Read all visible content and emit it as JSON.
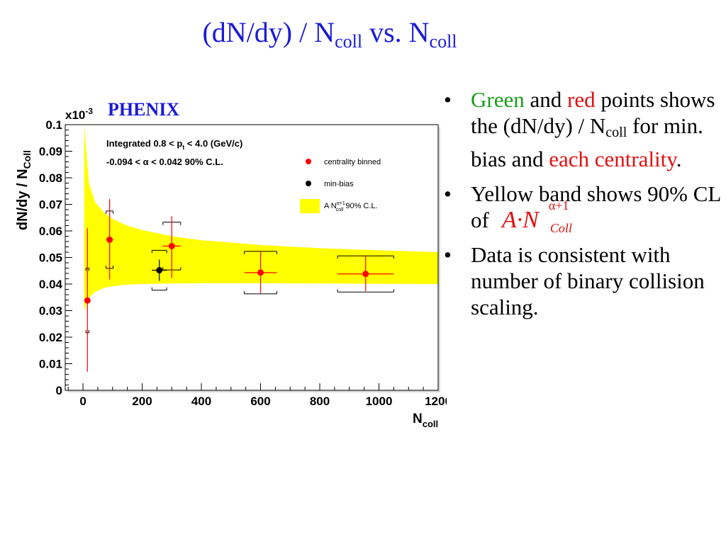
{
  "slide": {
    "title_main": "(dN/dy) / N",
    "title_sub1": "coll",
    "title_mid": " vs. N",
    "title_sub2": "coll",
    "phenix_label": "PHENIX"
  },
  "bullets": {
    "b1": {
      "green": "Green",
      "and1": " and ",
      "red": "red",
      "rest1": " points shows the (dN/dy) / N",
      "sub": "coll",
      "rest2": " for min. bias and ",
      "each": "each centrality",
      "end": "."
    },
    "b2": {
      "text": "Yellow band shows 90% CL of",
      "formula_main": "A·N",
      "formula_sup": "α+1",
      "formula_sub": "Coll"
    },
    "b3": {
      "text": "Data is consistent with number of binary collision scaling."
    }
  },
  "colors": {
    "title": "#1a1ad6",
    "centrality": "#ff0000",
    "minbias": "#000000",
    "band": "#ffff00",
    "green_text": "#18a018",
    "red_text": "#e01010"
  },
  "chart_data": {
    "type": "scatter",
    "ylabel": "dN/dy / N",
    "ylabel_sub": "Coll",
    "xlabel": "N",
    "xlabel_sub": "coll",
    "y_multiplier": "x10",
    "y_multiplier_exp": "-3",
    "xlim": [
      -60,
      1200
    ],
    "ylim": [
      0,
      0.1
    ],
    "x_ticks": [
      0,
      200,
      400,
      600,
      800,
      1000,
      1200
    ],
    "y_ticks": [
      0,
      0.01,
      0.02,
      0.03,
      0.04,
      0.05,
      0.06,
      0.07,
      0.08,
      0.09,
      0.1
    ],
    "y_tick_labels": [
      "0",
      "0.01",
      "0.02",
      "0.03",
      "0.04",
      "0.05",
      "0.06",
      "0.07",
      "0.08",
      "0.09",
      "0.1"
    ],
    "x_tick_labels": [
      "0",
      "200",
      "400",
      "600",
      "800",
      "1000",
      "1200"
    ],
    "annotations": [
      "Integrated 0.8 < p",
      "t",
      " < 4.0 (GeV/c)",
      "-0.094 < α < 0.042  90% C.L."
    ],
    "legend": [
      {
        "label": "centrality binned",
        "marker": "circle",
        "color": "#ff0000"
      },
      {
        "label": "min-bias",
        "marker": "circle",
        "color": "#000000"
      },
      {
        "label": "A N",
        "label_sup": "α+1",
        "label_sub": "coll",
        "label_end": " 90% C.L.",
        "marker": "box",
        "color": "#ffff00"
      }
    ],
    "legend_position": "top-right",
    "series": [
      {
        "name": "centrality binned",
        "color": "#ff0000",
        "points": [
          {
            "x": 15,
            "y": 0.0338,
            "yerr_low": 0.0268,
            "yerr_high": 0.0272,
            "sys_low": 0.0122,
            "sys_high": 0.0122,
            "xsys": 5
          },
          {
            "x": 90,
            "y": 0.0567,
            "yerr_low": 0.015,
            "yerr_high": 0.0153,
            "sys_low": 0.0108,
            "sys_high": 0.0108,
            "xsys": 12
          },
          {
            "x": 300,
            "y": 0.0543,
            "yerr_low": 0.012,
            "yerr_high": 0.0112,
            "sys_low": 0.009,
            "sys_high": 0.009,
            "xsys": 30
          },
          {
            "x": 600,
            "y": 0.0443,
            "yerr_low": 0.0078,
            "yerr_high": 0.0082,
            "sys_low": 0.008,
            "sys_high": 0.008,
            "xsys": 55
          },
          {
            "x": 955,
            "y": 0.0438,
            "yerr_low": 0.0065,
            "yerr_high": 0.0068,
            "sys_low": 0.0068,
            "sys_high": 0.0068,
            "xsys": 95
          }
        ]
      },
      {
        "name": "min-bias",
        "color": "#000000",
        "points": [
          {
            "x": 258,
            "y": 0.0452,
            "yerr_low": 0.004,
            "yerr_high": 0.004,
            "sys_low": 0.0075,
            "sys_high": 0.0075,
            "xsys": 25
          }
        ]
      }
    ],
    "band": {
      "description": "A N_coll^(alpha+1) 90% C.L.",
      "x": [
        4,
        20,
        40,
        70,
        100,
        150,
        200,
        300,
        400,
        600,
        800,
        1000,
        1200
      ],
      "low": [
        0.03,
        0.0348,
        0.037,
        0.0385,
        0.0392,
        0.0398,
        0.04,
        0.0402,
        0.0403,
        0.0403,
        0.0402,
        0.0401,
        0.04
      ],
      "high": [
        0.1,
        0.078,
        0.071,
        0.067,
        0.0645,
        0.062,
        0.0603,
        0.058,
        0.0565,
        0.0547,
        0.0535,
        0.0527,
        0.052
      ]
    }
  }
}
